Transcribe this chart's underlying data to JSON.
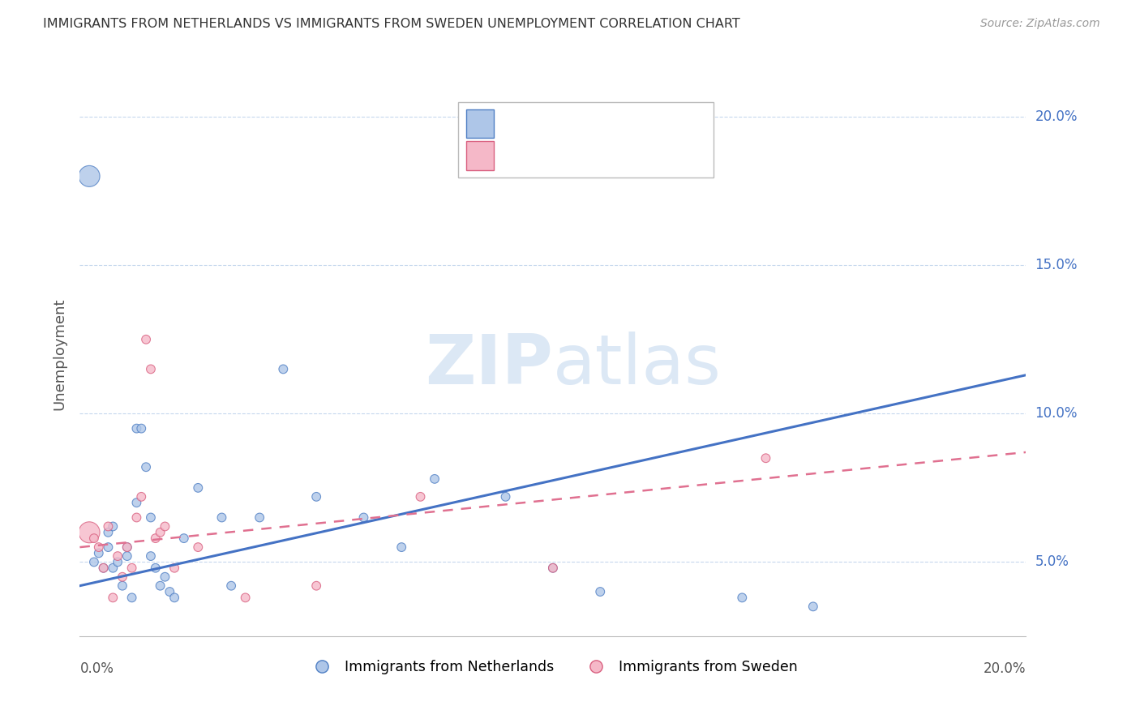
{
  "title": "IMMIGRANTS FROM NETHERLANDS VS IMMIGRANTS FROM SWEDEN UNEMPLOYMENT CORRELATION CHART",
  "source": "Source: ZipAtlas.com",
  "ylabel": "Unemployment",
  "ytick_vals": [
    0.05,
    0.1,
    0.15,
    0.2
  ],
  "ytick_labels": [
    "5.0%",
    "10.0%",
    "15.0%",
    "20.0%"
  ],
  "xlim": [
    0.0,
    0.2
  ],
  "ylim": [
    0.025,
    0.215
  ],
  "legend_label1": "Immigrants from Netherlands",
  "legend_label2": "Immigrants from Sweden",
  "color_blue_fill": "#aec6e8",
  "color_blue_edge": "#4f7fc4",
  "color_pink_fill": "#f5b8c8",
  "color_pink_edge": "#d96080",
  "color_line_blue": "#4472c4",
  "color_line_pink": "#e07090",
  "watermark_color": "#dce8f5",
  "nl_x": [
    0.002,
    0.003,
    0.004,
    0.005,
    0.006,
    0.006,
    0.007,
    0.007,
    0.008,
    0.009,
    0.01,
    0.01,
    0.011,
    0.012,
    0.012,
    0.013,
    0.014,
    0.015,
    0.015,
    0.016,
    0.017,
    0.018,
    0.019,
    0.02,
    0.022,
    0.025,
    0.03,
    0.032,
    0.038,
    0.043,
    0.05,
    0.06,
    0.068,
    0.075,
    0.09,
    0.1,
    0.11,
    0.14,
    0.155
  ],
  "nl_y": [
    0.18,
    0.05,
    0.053,
    0.048,
    0.06,
    0.055,
    0.062,
    0.048,
    0.05,
    0.042,
    0.055,
    0.052,
    0.038,
    0.07,
    0.095,
    0.095,
    0.082,
    0.065,
    0.052,
    0.048,
    0.042,
    0.045,
    0.04,
    0.038,
    0.058,
    0.075,
    0.065,
    0.042,
    0.065,
    0.115,
    0.072,
    0.065,
    0.055,
    0.078,
    0.072,
    0.048,
    0.04,
    0.038,
    0.035
  ],
  "nl_sizes": [
    60,
    60,
    60,
    60,
    60,
    60,
    60,
    60,
    60,
    60,
    60,
    60,
    60,
    60,
    60,
    60,
    60,
    60,
    60,
    60,
    60,
    60,
    60,
    60,
    60,
    60,
    60,
    60,
    60,
    60,
    60,
    60,
    60,
    60,
    60,
    60,
    60,
    60,
    60
  ],
  "nl_big_idx": 0,
  "sw_x": [
    0.002,
    0.003,
    0.004,
    0.005,
    0.006,
    0.007,
    0.008,
    0.009,
    0.01,
    0.011,
    0.012,
    0.013,
    0.014,
    0.015,
    0.016,
    0.017,
    0.018,
    0.02,
    0.025,
    0.035,
    0.05,
    0.072,
    0.1,
    0.145
  ],
  "sw_y": [
    0.06,
    0.058,
    0.055,
    0.048,
    0.062,
    0.038,
    0.052,
    0.045,
    0.055,
    0.048,
    0.065,
    0.072,
    0.125,
    0.115,
    0.058,
    0.06,
    0.062,
    0.048,
    0.055,
    0.038,
    0.042,
    0.072,
    0.048,
    0.085
  ],
  "sw_sizes": [
    60,
    60,
    60,
    60,
    60,
    60,
    60,
    60,
    60,
    60,
    60,
    60,
    60,
    60,
    60,
    60,
    60,
    60,
    60,
    60,
    60,
    60,
    60,
    60
  ],
  "nl_line_x0": 0.0,
  "nl_line_x1": 0.2,
  "nl_line_y0": 0.042,
  "nl_line_y1": 0.113,
  "sw_line_x0": 0.0,
  "sw_line_x1": 0.2,
  "sw_line_y0": 0.055,
  "sw_line_y1": 0.087
}
